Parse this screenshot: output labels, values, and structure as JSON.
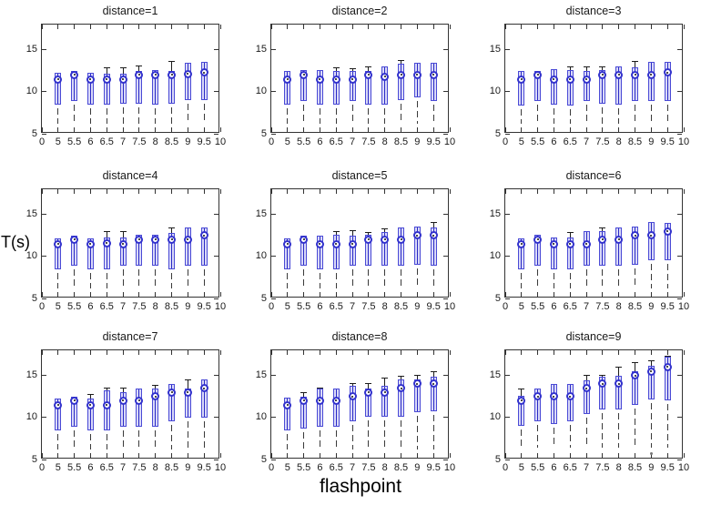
{
  "labels": {
    "ylabel": "T(s)",
    "xlabel": "flashpoint"
  },
  "axes": {
    "ylim": [
      5,
      18
    ],
    "yticks": [
      5,
      10,
      15
    ],
    "ytick_labels": [
      "5",
      "10",
      "15"
    ],
    "xticklabels": [
      "0",
      "5",
      "5.5",
      "6",
      "6.5",
      "7",
      "7.5",
      "8",
      "8.5",
      "9",
      "9.5",
      "10"
    ],
    "grid": false
  },
  "colors": {
    "box_fill": "#d9d9f8",
    "box_edge": "#4a4ad6",
    "box_center_line": "#2a2ac4",
    "median_ring": "#3232cc",
    "median_dot": "#111111",
    "whisker": "#3a3a3a",
    "axis": "#333333",
    "text": "#1a1a1a"
  },
  "chart_data": [
    {
      "type": "box",
      "title": "distance=1",
      "categories": [
        "5",
        "5.5",
        "6",
        "6.5",
        "7",
        "7.5",
        "8",
        "8.5",
        "9",
        "9.5"
      ],
      "median": [
        11.5,
        12.0,
        11.5,
        11.5,
        11.5,
        12.0,
        12.0,
        12.0,
        12.1,
        12.3
      ],
      "q1": [
        8.5,
        8.9,
        8.5,
        8.5,
        8.6,
        8.6,
        8.5,
        8.6,
        9.0,
        9.0
      ],
      "q3": [
        12.3,
        12.5,
        12.3,
        12.2,
        12.2,
        12.5,
        12.6,
        12.5,
        13.5,
        13.6
      ],
      "whisker_top": [
        12.3,
        12.5,
        12.3,
        12.9,
        12.9,
        13.1,
        12.6,
        13.6,
        13.5,
        13.6
      ],
      "whisker_bottom": 6.2,
      "outliers": []
    },
    {
      "type": "box",
      "title": "distance=2",
      "categories": [
        "5",
        "5.5",
        "6",
        "6.5",
        "7",
        "7.5",
        "8",
        "8.5",
        "9",
        "9.5"
      ],
      "median": [
        11.5,
        12.0,
        11.5,
        11.5,
        11.5,
        12.0,
        11.8,
        12.0,
        12.0,
        12.0
      ],
      "q1": [
        8.5,
        8.9,
        8.5,
        8.5,
        8.9,
        8.5,
        8.5,
        9.0,
        9.3,
        8.9
      ],
      "q3": [
        12.5,
        12.6,
        12.6,
        12.5,
        12.5,
        12.5,
        13.0,
        13.3,
        13.5,
        13.5
      ],
      "whisker_top": [
        12.5,
        12.6,
        12.6,
        12.9,
        12.8,
        13.0,
        13.0,
        13.7,
        13.5,
        13.5
      ],
      "whisker_bottom": 6.2,
      "outliers": []
    },
    {
      "type": "box",
      "title": "distance=3",
      "categories": [
        "5",
        "5.5",
        "6",
        "6.5",
        "7",
        "7.5",
        "8",
        "8.5",
        "9",
        "9.5"
      ],
      "median": [
        11.5,
        12.0,
        11.5,
        11.5,
        11.5,
        12.0,
        12.0,
        12.0,
        12.0,
        12.3
      ],
      "q1": [
        8.4,
        8.9,
        8.5,
        8.4,
        8.9,
        8.6,
        8.5,
        8.9,
        8.9,
        8.9
      ],
      "q3": [
        12.5,
        12.5,
        12.7,
        12.6,
        12.5,
        12.6,
        13.0,
        12.9,
        13.6,
        13.6
      ],
      "whisker_top": [
        12.5,
        12.5,
        12.7,
        13.0,
        13.0,
        13.0,
        13.0,
        13.6,
        13.6,
        13.6
      ],
      "whisker_bottom": 6.2,
      "outliers": []
    },
    {
      "type": "box",
      "title": "distance=4",
      "categories": [
        "5",
        "5.5",
        "6",
        "6.5",
        "7",
        "7.5",
        "8",
        "8.5",
        "9",
        "9.5"
      ],
      "median": [
        11.5,
        12.0,
        11.5,
        11.6,
        11.5,
        12.0,
        12.0,
        12.0,
        12.0,
        12.5
      ],
      "q1": [
        8.5,
        8.9,
        8.5,
        8.5,
        8.9,
        8.9,
        8.9,
        8.5,
        8.9,
        8.9
      ],
      "q3": [
        12.2,
        12.5,
        12.2,
        12.3,
        12.3,
        12.6,
        12.6,
        12.8,
        13.4,
        13.5
      ],
      "whisker_top": [
        12.2,
        12.5,
        12.2,
        13.0,
        13.0,
        12.6,
        12.6,
        13.4,
        13.4,
        13.5
      ],
      "whisker_bottom": 6.2,
      "outliers": []
    },
    {
      "type": "box",
      "title": "distance=5",
      "categories": [
        "5",
        "5.5",
        "6",
        "6.5",
        "7",
        "7.5",
        "8",
        "8.5",
        "9",
        "9.5"
      ],
      "median": [
        11.5,
        12.0,
        11.5,
        11.5,
        11.5,
        12.0,
        12.0,
        12.0,
        12.5,
        12.5
      ],
      "q1": [
        8.5,
        8.9,
        8.5,
        8.5,
        8.9,
        8.9,
        8.9,
        8.9,
        9.0,
        8.9
      ],
      "q3": [
        12.2,
        12.5,
        12.5,
        12.6,
        12.5,
        12.6,
        12.9,
        13.4,
        13.6,
        13.4
      ],
      "whisker_top": [
        12.2,
        12.5,
        12.5,
        13.0,
        13.1,
        12.9,
        13.3,
        13.4,
        13.6,
        14.0
      ],
      "whisker_bottom": 6.2,
      "outliers": []
    },
    {
      "type": "box",
      "title": "distance=6",
      "categories": [
        "5",
        "5.5",
        "6",
        "6.5",
        "7",
        "7.5",
        "8",
        "8.5",
        "9",
        "9.5"
      ],
      "median": [
        11.5,
        12.0,
        11.5,
        11.5,
        11.5,
        12.0,
        12.0,
        12.5,
        12.5,
        13.0
      ],
      "q1": [
        8.5,
        8.9,
        8.5,
        8.5,
        8.9,
        8.9,
        8.9,
        9.0,
        9.5,
        9.5
      ],
      "q3": [
        12.2,
        12.6,
        12.3,
        12.3,
        13.0,
        13.0,
        13.5,
        13.6,
        14.1,
        14.0
      ],
      "whisker_top": [
        12.2,
        12.6,
        12.3,
        12.9,
        13.0,
        13.4,
        13.5,
        13.6,
        14.1,
        14.0
      ],
      "whisker_bottom": 6.2,
      "outliers": []
    },
    {
      "type": "box",
      "title": "distance=7",
      "categories": [
        "5",
        "5.5",
        "6",
        "6.5",
        "7",
        "7.5",
        "8",
        "8.5",
        "9",
        "9.5"
      ],
      "median": [
        11.5,
        12.0,
        11.5,
        11.5,
        12.0,
        12.0,
        12.5,
        13.0,
        13.0,
        13.5
      ],
      "q1": [
        8.5,
        8.9,
        8.5,
        8.5,
        8.9,
        8.9,
        8.9,
        9.5,
        10.0,
        10.0
      ],
      "q3": [
        12.3,
        12.5,
        12.3,
        13.2,
        13.0,
        13.5,
        13.5,
        14.0,
        13.5,
        14.5
      ],
      "whisker_top": [
        12.3,
        12.5,
        12.8,
        13.5,
        13.5,
        13.5,
        13.8,
        14.0,
        14.5,
        14.5
      ],
      "whisker_bottom": 6.2,
      "outliers": []
    },
    {
      "type": "box",
      "title": "distance=8",
      "categories": [
        "5",
        "5.5",
        "6",
        "6.5",
        "7",
        "7.5",
        "8",
        "8.5",
        "9",
        "9.5"
      ],
      "median": [
        11.5,
        12.0,
        12.0,
        12.0,
        12.5,
        13.0,
        13.0,
        13.5,
        14.0,
        14.0
      ],
      "q1": [
        8.5,
        8.7,
        8.9,
        8.9,
        9.5,
        10.1,
        10.1,
        10.1,
        10.6,
        10.7
      ],
      "q3": [
        12.4,
        12.5,
        13.4,
        13.5,
        13.8,
        13.5,
        13.8,
        14.5,
        14.5,
        14.9
      ],
      "whisker_top": [
        12.4,
        13.0,
        13.5,
        13.5,
        14.0,
        14.0,
        14.7,
        14.9,
        15.0,
        15.5
      ],
      "whisker_bottom": 6.2,
      "outliers": []
    },
    {
      "type": "box",
      "title": "distance=9",
      "categories": [
        "5",
        "5.5",
        "6",
        "6.5",
        "7",
        "7.5",
        "8",
        "8.5",
        "9",
        "9.5"
      ],
      "median": [
        12.0,
        12.5,
        12.5,
        12.5,
        13.5,
        14.0,
        14.0,
        15.0,
        15.5,
        16.0
      ],
      "q1": [
        9.0,
        9.5,
        9.2,
        9.5,
        10.4,
        11.0,
        11.0,
        11.5,
        12.2,
        12.0
      ],
      "q3": [
        12.6,
        13.4,
        14.0,
        14.0,
        14.4,
        14.9,
        15.0,
        15.5,
        16.2,
        17.2
      ],
      "whisker_top": [
        13.4,
        13.4,
        14.0,
        14.0,
        15.0,
        15.0,
        16.0,
        16.5,
        16.8,
        17.3
      ],
      "whisker_bottom": 6.4,
      "outliers": [
        {
          "category": "9",
          "value": 5.7
        }
      ]
    }
  ]
}
